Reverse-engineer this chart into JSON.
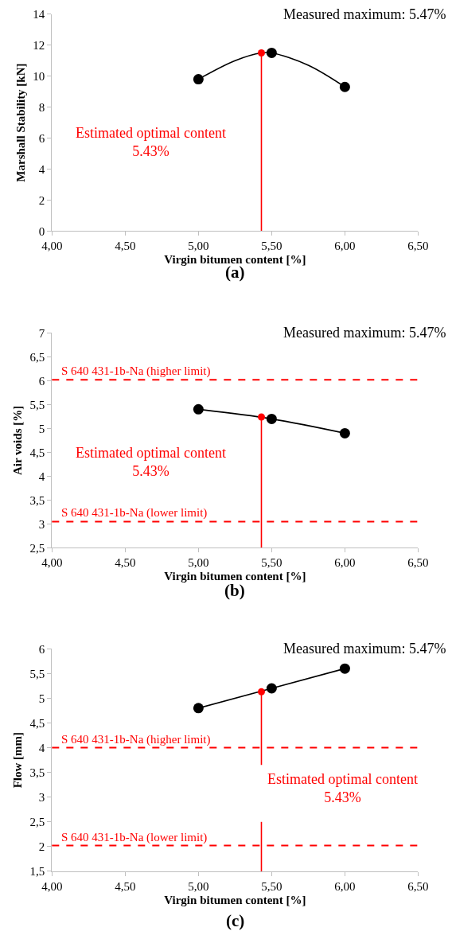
{
  "chart_data": [
    {
      "type": "scatter",
      "xlabel": "Virgin bitumen content [%]",
      "ylabel": "Marshall Stability [kN]",
      "xlim": [
        4,
        6.5
      ],
      "xticks": [
        {
          "value": 4,
          "label": "4,00"
        },
        {
          "value": 4.5,
          "label": "4,50"
        },
        {
          "value": 5,
          "label": "5,00"
        },
        {
          "value": 5.5,
          "label": "5,50"
        },
        {
          "value": 6,
          "label": "6,00"
        },
        {
          "value": 6.5,
          "label": "6,50"
        }
      ],
      "ylim": [
        0,
        14
      ],
      "yticks": [
        0,
        2,
        4,
        6,
        8,
        10,
        12,
        14
      ],
      "series": [
        {
          "type": "line",
          "color": "#000000",
          "marker": "none",
          "line_style": "solid",
          "x": [
            5,
            5.25,
            5.43,
            5.5,
            5.75,
            6
          ],
          "values": [
            9.8,
            11.0,
            11.5,
            11.5,
            10.7,
            9.3
          ]
        },
        {
          "color": "#000000",
          "marker": "circle",
          "x": [
            5,
            5.5,
            6
          ],
          "values": [
            9.8,
            11.5,
            9.3
          ]
        },
        {
          "type": "line",
          "color": "#ff0000",
          "marker": "none",
          "line_style": "solid",
          "x": [
            5.43,
            5.43
          ],
          "values": [
            0,
            11.5
          ]
        },
        {
          "color": "#ff0000",
          "marker": "circle",
          "x": [
            5.43
          ],
          "values": [
            11.5
          ]
        }
      ],
      "annotations": [
        "Measured maximum: 5.47%",
        "Estimated optimal content\n5.43%",
        "(a)"
      ]
    },
    {
      "type": "scatter",
      "xlabel": "Virgin bitumen content [%]",
      "ylabel": "Air voids [%]",
      "xlim": [
        4,
        6.5
      ],
      "xticks": [
        {
          "value": 4,
          "label": "4,00"
        },
        {
          "value": 4.5,
          "label": "4,50"
        },
        {
          "value": 5,
          "label": "5,00"
        },
        {
          "value": 5.5,
          "label": "5,50"
        },
        {
          "value": 6,
          "label": "6,00"
        },
        {
          "value": 6.5,
          "label": "6,50"
        }
      ],
      "ylim": [
        2.5,
        7
      ],
      "yticks": [
        {
          "value": 2.5,
          "label": "2,5"
        },
        3,
        {
          "value": 3.5,
          "label": "3,5"
        },
        4,
        {
          "value": 4.5,
          "label": "4,5"
        },
        5,
        {
          "value": 5.5,
          "label": "5,5"
        },
        6,
        {
          "value": 6.5,
          "label": "6,5"
        },
        7
      ],
      "series": [
        {
          "type": "line",
          "color": "#000000",
          "marker": "none",
          "line_style": "solid",
          "x": [
            5,
            5.5,
            6
          ],
          "values": [
            5.4,
            5.2,
            4.9
          ]
        },
        {
          "color": "#000000",
          "marker": "circle",
          "x": [
            5,
            5.5,
            6
          ],
          "values": [
            5.4,
            5.2,
            4.9
          ]
        },
        {
          "type": "line",
          "color": "#ff0000",
          "marker": "none",
          "line_style": "solid",
          "x": [
            5.43,
            5.43
          ],
          "values": [
            2.5,
            5.24
          ]
        },
        {
          "color": "#ff0000",
          "marker": "circle",
          "x": [
            5.43
          ],
          "values": [
            5.24
          ]
        }
      ],
      "ref_lines": [
        {
          "axis": "y",
          "value": 6.02,
          "label": "S 640 431-1b-Na (higher limit)",
          "color": "#ff0000",
          "line_style": "dashed"
        },
        {
          "axis": "y",
          "value": 3.05,
          "label": "S 640 431-1b-Na (lower limit)",
          "color": "#ff0000",
          "line_style": "dashed"
        }
      ],
      "annotations": [
        "Measured maximum: 5.47%",
        "Estimated optimal content\n5.43%",
        "(b)"
      ]
    },
    {
      "type": "scatter",
      "xlabel": "Virgin bitumen content [%]",
      "ylabel": "Flow [mm]",
      "xlim": [
        4,
        6.5
      ],
      "xticks": [
        {
          "value": 4,
          "label": "4,00"
        },
        {
          "value": 4.5,
          "label": "4,50"
        },
        {
          "value": 5,
          "label": "5,00"
        },
        {
          "value": 5.5,
          "label": "5,50"
        },
        {
          "value": 6,
          "label": "6,00"
        },
        {
          "value": 6.5,
          "label": "6,50"
        }
      ],
      "ylim": [
        1.5,
        6
      ],
      "yticks": [
        {
          "value": 1.5,
          "label": "1,5"
        },
        2,
        {
          "value": 2.5,
          "label": "2,5"
        },
        3,
        {
          "value": 3.5,
          "label": "3,5"
        },
        4,
        {
          "value": 4.5,
          "label": "4,5"
        },
        5,
        {
          "value": 5.5,
          "label": "5,5"
        },
        6
      ],
      "series": [
        {
          "type": "line",
          "color": "#000000",
          "marker": "none",
          "line_style": "solid",
          "x": [
            5,
            5.5,
            6
          ],
          "values": [
            4.8,
            5.2,
            5.6
          ]
        },
        {
          "color": "#000000",
          "marker": "circle",
          "x": [
            5,
            5.5,
            6
          ],
          "values": [
            4.8,
            5.2,
            5.6
          ]
        },
        {
          "type": "line",
          "color": "#ff0000",
          "marker": "none",
          "line_style": "solid",
          "x": [
            5.43,
            5.43
          ],
          "values": [
            1.5,
            2.5
          ]
        },
        {
          "type": "line",
          "color": "#ff0000",
          "marker": "none",
          "line_style": "solid",
          "x": [
            5.43,
            5.43
          ],
          "values": [
            3.65,
            5.13
          ]
        },
        {
          "color": "#ff0000",
          "marker": "circle",
          "x": [
            5.43
          ],
          "values": [
            5.13
          ]
        }
      ],
      "ref_lines": [
        {
          "axis": "y",
          "value": 4.0,
          "label": "S 640 431-1b-Na (higher limit)",
          "color": "#ff0000",
          "line_style": "dashed"
        },
        {
          "axis": "y",
          "value": 2.02,
          "label": "S 640 431-1b-Na (lower limit)",
          "color": "#ff0000",
          "line_style": "dashed"
        }
      ],
      "annotations": [
        "Measured maximum: 5.47%",
        "Estimated optimal content\n5.43%",
        "(c)"
      ]
    }
  ]
}
